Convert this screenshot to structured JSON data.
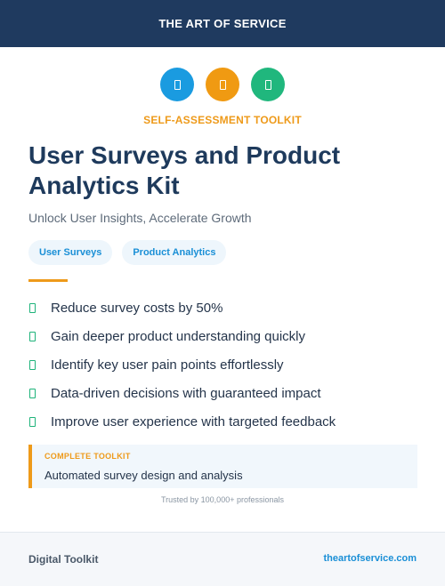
{
  "header": {
    "brand": "THE ART OF SERVICE"
  },
  "icons": [
    {
      "name": "survey-icon",
      "color": "#1a9be0"
    },
    {
      "name": "analytics-icon",
      "color": "#f09a12"
    },
    {
      "name": "insights-icon",
      "color": "#20b77d"
    }
  ],
  "kicker": "SELF-ASSESSMENT TOOLKIT",
  "title": "User Surveys and Product Analytics Kit",
  "subtitle": "Unlock User Insights, Accelerate Growth",
  "tags": [
    "User Surveys",
    "Product Analytics"
  ],
  "benefits": [
    "Reduce survey costs by 50%",
    "Gain deeper product understanding quickly",
    "Identify key user pain points effortlessly",
    "Data-driven decisions with guaranteed impact",
    "Improve user experience with targeted feedback"
  ],
  "callout": {
    "label": "COMPLETE TOOLKIT",
    "text": "Automated survey design and analysis"
  },
  "trusted": "Trusted by 100,000+ professionals",
  "footer": {
    "left": "Digital Toolkit",
    "right": "theartofservice.com"
  },
  "colors": {
    "navy": "#1f3a5f",
    "accent_orange": "#ee9a1a",
    "accent_blue": "#1a8fd6",
    "accent_green": "#1eb37a"
  }
}
